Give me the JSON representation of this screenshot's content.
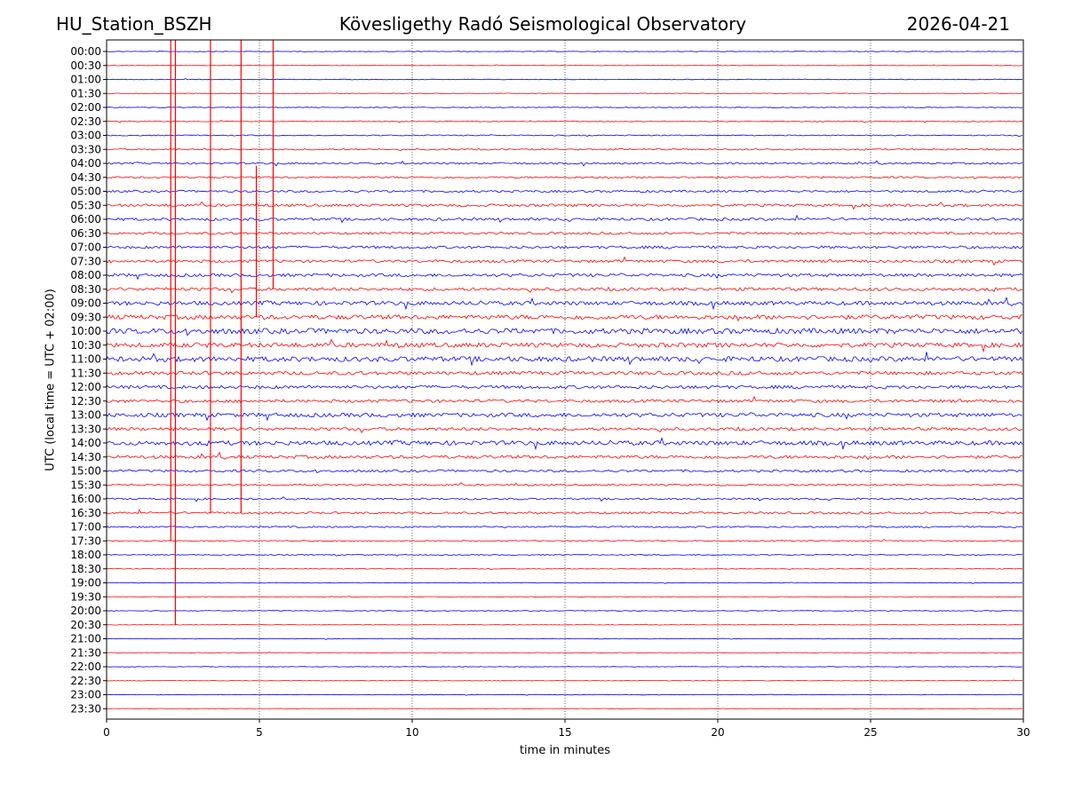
{
  "header": {
    "station": "HU_Station_BSZH",
    "title": "Kövesligethy Radó Seismological Observatory",
    "date": "2026-04-21"
  },
  "chart_data": {
    "type": "line",
    "title": "Kövesligethy Radó Seismological Observatory",
    "xlabel": "time in minutes",
    "ylabel": "UTC (local time = UTC + 02:00)",
    "xlim": [
      0,
      30
    ],
    "x_ticks": [
      0,
      5,
      10,
      15,
      20,
      25,
      30
    ],
    "grid": "vertical dotted at x ticks",
    "trace_colors": [
      "#0000ff",
      "#ff0000"
    ],
    "rows": [
      "00:00",
      "00:30",
      "01:00",
      "01:30",
      "02:00",
      "02:30",
      "03:00",
      "03:30",
      "04:00",
      "04:30",
      "05:00",
      "05:30",
      "06:00",
      "06:30",
      "07:00",
      "07:30",
      "08:00",
      "08:30",
      "09:00",
      "09:30",
      "10:00",
      "10:30",
      "11:00",
      "11:30",
      "12:00",
      "12:30",
      "13:00",
      "13:30",
      "14:00",
      "14:30",
      "15:00",
      "15:30",
      "16:00",
      "16:30",
      "17:00",
      "17:30",
      "18:00",
      "18:30",
      "19:00",
      "19:30",
      "20:00",
      "20:30",
      "21:00",
      "21:30",
      "22:00",
      "22:30",
      "23:00",
      "23:30"
    ],
    "noise_level": [
      0.3,
      0.3,
      0.35,
      0.35,
      0.4,
      0.5,
      0.6,
      0.8,
      1.0,
      1.0,
      1.2,
      1.5,
      1.5,
      1.3,
      1.5,
      1.6,
      1.7,
      1.8,
      2.2,
      2.5,
      3.0,
      2.5,
      2.8,
      2.0,
      1.8,
      1.7,
      2.2,
      1.8,
      2.4,
      1.8,
      1.3,
      1.0,
      1.0,
      1.2,
      0.9,
      0.6,
      0.5,
      0.4,
      0.3,
      0.3,
      0.4,
      0.3,
      0.3,
      0.3,
      0.3,
      0.3,
      0.3,
      0.3
    ],
    "events": [
      {
        "minute": 2.1,
        "start_row": "00:00",
        "end_row": "17:30"
      },
      {
        "minute": 2.25,
        "start_row": "00:00",
        "end_row": "20:30"
      },
      {
        "minute": 3.4,
        "start_row": "00:00",
        "end_row": "16:30"
      },
      {
        "minute": 4.4,
        "start_row": "00:00",
        "end_row": "16:30"
      },
      {
        "minute": 4.9,
        "start_row": "04:30",
        "end_row": "09:30"
      },
      {
        "minute": 5.45,
        "start_row": "00:00",
        "end_row": "08:30"
      }
    ]
  }
}
